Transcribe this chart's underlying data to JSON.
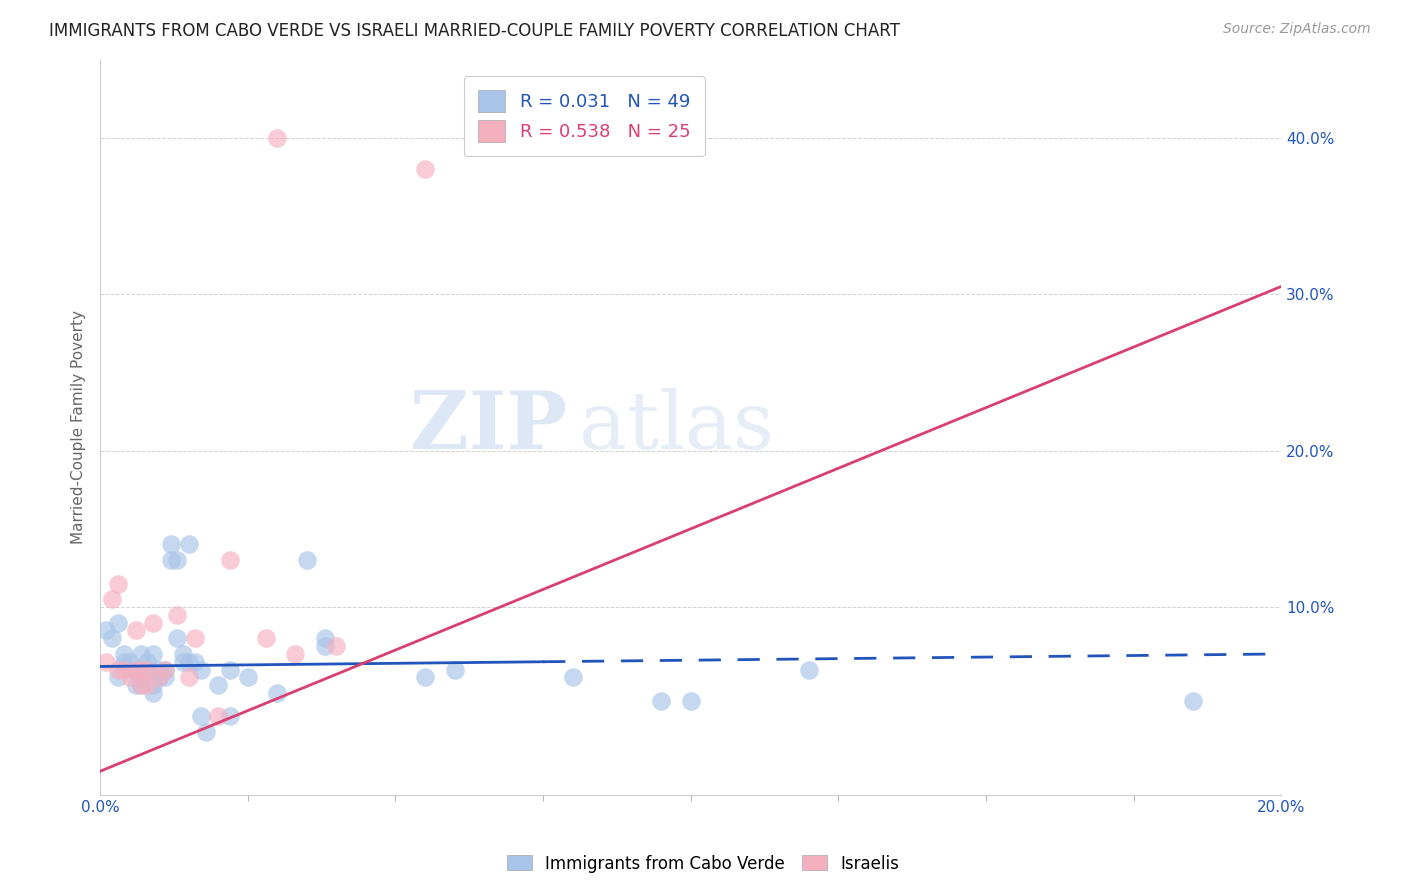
{
  "title": "IMMIGRANTS FROM CABO VERDE VS ISRAELI MARRIED-COUPLE FAMILY POVERTY CORRELATION CHART",
  "source": "Source: ZipAtlas.com",
  "ylabel": "Married-Couple Family Poverty",
  "legend_blue_label": "Immigrants from Cabo Verde",
  "legend_pink_label": "Israelis",
  "R_blue": 0.031,
  "N_blue": 49,
  "R_pink": 0.538,
  "N_pink": 25,
  "xlim": [
    0.0,
    0.2
  ],
  "ylim": [
    -0.02,
    0.45
  ],
  "xticks": [
    0.0,
    0.2
  ],
  "xtick_labels": [
    "0.0%",
    "20.0%"
  ],
  "yticks": [
    0.1,
    0.2,
    0.3,
    0.4
  ],
  "ytick_labels": [
    "10.0%",
    "20.0%",
    "30.0%",
    "40.0%"
  ],
  "blue_color": "#a8c4e8",
  "pink_color": "#f5b0c0",
  "trendline_blue": "#2255bb",
  "trendline_pink": "#d84070",
  "blue_scatter": [
    [
      0.001,
      0.085
    ],
    [
      0.002,
      0.08
    ],
    [
      0.003,
      0.09
    ],
    [
      0.003,
      0.055
    ],
    [
      0.004,
      0.065
    ],
    [
      0.004,
      0.07
    ],
    [
      0.005,
      0.065
    ],
    [
      0.005,
      0.06
    ],
    [
      0.006,
      0.05
    ],
    [
      0.006,
      0.06
    ],
    [
      0.007,
      0.05
    ],
    [
      0.007,
      0.055
    ],
    [
      0.007,
      0.07
    ],
    [
      0.008,
      0.06
    ],
    [
      0.008,
      0.065
    ],
    [
      0.009,
      0.05
    ],
    [
      0.009,
      0.045
    ],
    [
      0.009,
      0.07
    ],
    [
      0.01,
      0.06
    ],
    [
      0.01,
      0.055
    ],
    [
      0.011,
      0.055
    ],
    [
      0.011,
      0.06
    ],
    [
      0.012,
      0.14
    ],
    [
      0.012,
      0.13
    ],
    [
      0.013,
      0.08
    ],
    [
      0.013,
      0.13
    ],
    [
      0.014,
      0.07
    ],
    [
      0.014,
      0.065
    ],
    [
      0.015,
      0.14
    ],
    [
      0.015,
      0.065
    ],
    [
      0.016,
      0.065
    ],
    [
      0.017,
      0.03
    ],
    [
      0.017,
      0.06
    ],
    [
      0.018,
      0.02
    ],
    [
      0.02,
      0.05
    ],
    [
      0.022,
      0.03
    ],
    [
      0.022,
      0.06
    ],
    [
      0.025,
      0.055
    ],
    [
      0.03,
      0.045
    ],
    [
      0.035,
      0.13
    ],
    [
      0.038,
      0.08
    ],
    [
      0.038,
      0.075
    ],
    [
      0.055,
      0.055
    ],
    [
      0.06,
      0.06
    ],
    [
      0.08,
      0.055
    ],
    [
      0.095,
      0.04
    ],
    [
      0.1,
      0.04
    ],
    [
      0.12,
      0.06
    ],
    [
      0.185,
      0.04
    ]
  ],
  "pink_scatter": [
    [
      0.001,
      0.065
    ],
    [
      0.002,
      0.105
    ],
    [
      0.003,
      0.115
    ],
    [
      0.003,
      0.06
    ],
    [
      0.004,
      0.06
    ],
    [
      0.005,
      0.055
    ],
    [
      0.006,
      0.06
    ],
    [
      0.006,
      0.085
    ],
    [
      0.007,
      0.05
    ],
    [
      0.007,
      0.06
    ],
    [
      0.008,
      0.05
    ],
    [
      0.008,
      0.06
    ],
    [
      0.009,
      0.09
    ],
    [
      0.01,
      0.055
    ],
    [
      0.011,
      0.06
    ],
    [
      0.013,
      0.095
    ],
    [
      0.015,
      0.055
    ],
    [
      0.016,
      0.08
    ],
    [
      0.02,
      0.03
    ],
    [
      0.022,
      0.13
    ],
    [
      0.028,
      0.08
    ],
    [
      0.033,
      0.07
    ],
    [
      0.04,
      0.075
    ],
    [
      0.03,
      0.4
    ],
    [
      0.055,
      0.38
    ]
  ],
  "blue_trendline_x": [
    0.0,
    0.2
  ],
  "blue_trendline_y": [
    0.062,
    0.07
  ],
  "pink_trendline_x": [
    0.0,
    0.2
  ],
  "pink_trendline_y": [
    -0.005,
    0.305
  ],
  "watermark_zip": "ZIP",
  "watermark_atlas": "atlas",
  "background_color": "#ffffff",
  "grid_color": "#cccccc",
  "title_fontsize": 12,
  "source_fontsize": 10,
  "tick_fontsize": 11,
  "ylabel_fontsize": 11
}
